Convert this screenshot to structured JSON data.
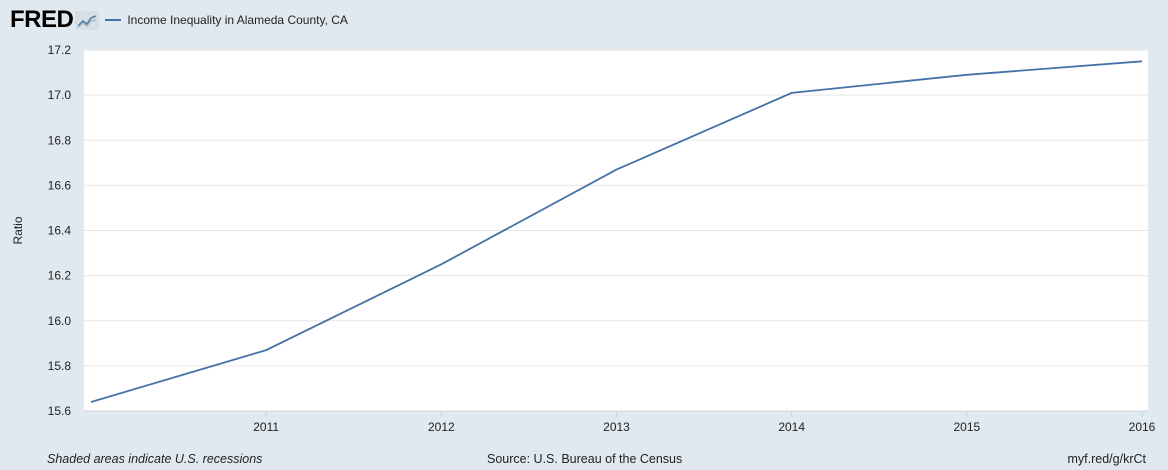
{
  "brand": {
    "logo_text": "FRED",
    "logo_icon": "chart-line-icon"
  },
  "footer": {
    "note": "Shaded areas indicate U.S. recessions",
    "source": "Source: U.S. Bureau of the Census",
    "link": "myf.red/g/krCt"
  },
  "colors": {
    "series": "#4572a7",
    "background": "#e1e9f0",
    "plot": "#ffffff",
    "grid": "#e6e6e6"
  },
  "chart_data": {
    "type": "line",
    "title": "",
    "xlabel": "",
    "ylabel": "Ratio",
    "x": [
      2010,
      2011,
      2012,
      2013,
      2014,
      2015,
      2016
    ],
    "x_ticks": [
      2011,
      2012,
      2013,
      2014,
      2015,
      2016
    ],
    "x_tick_labels": [
      "2011",
      "2012",
      "2013",
      "2014",
      "2015",
      "2016"
    ],
    "ylim": [
      15.6,
      17.2
    ],
    "y_ticks": [
      15.6,
      15.8,
      16.0,
      16.2,
      16.4,
      16.6,
      16.8,
      17.0,
      17.2
    ],
    "y_tick_labels": [
      "15.6",
      "15.8",
      "16.0",
      "16.2",
      "16.4",
      "16.6",
      "16.8",
      "17.0",
      "17.2"
    ],
    "grid": true,
    "legend_position": "top-left",
    "series": [
      {
        "name": "Income Inequality in Alameda County, CA",
        "values": [
          15.64,
          15.87,
          16.25,
          16.67,
          17.01,
          17.09,
          17.15
        ]
      }
    ]
  }
}
